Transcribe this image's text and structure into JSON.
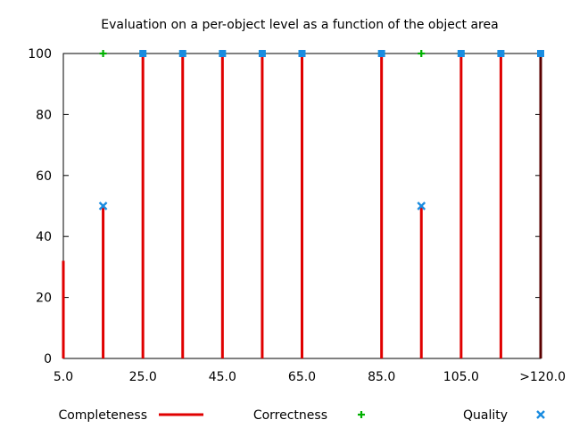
{
  "chart_data": {
    "type": "bar",
    "title": "Evaluation on a per-object level as a function of the object area",
    "xlabel": "",
    "ylabel": "",
    "xlim": [
      5.0,
      125.0
    ],
    "ylim": [
      0,
      100
    ],
    "x_ticks": [
      {
        "value": 5.0,
        "label": "5.0"
      },
      {
        "value": 25.0,
        "label": "25.0"
      },
      {
        "value": 45.0,
        "label": "45.0"
      },
      {
        "value": 65.0,
        "label": "65.0"
      },
      {
        "value": 85.0,
        "label": "85.0"
      },
      {
        "value": 105.0,
        "label": "105.0"
      },
      {
        "value": 125.0,
        "label": ">120.0"
      }
    ],
    "y_ticks": [
      {
        "value": 0,
        "label": "0"
      },
      {
        "value": 20,
        "label": "20"
      },
      {
        "value": 40,
        "label": "40"
      },
      {
        "value": 60,
        "label": "60"
      },
      {
        "value": 80,
        "label": "80"
      },
      {
        "value": 100,
        "label": "100"
      }
    ],
    "x": [
      5,
      15,
      25,
      35,
      45,
      55,
      65,
      85,
      95,
      105,
      115,
      125
    ],
    "series": [
      {
        "name": "Completeness",
        "style": "impulses",
        "color": "#e00000",
        "values": [
          32,
          50,
          100,
          100,
          100,
          100,
          100,
          100,
          50,
          100,
          100,
          100
        ]
      },
      {
        "name": "Correctness",
        "style": "plus",
        "color": "#00b000",
        "values": [
          null,
          100,
          100,
          100,
          100,
          100,
          100,
          100,
          100,
          100,
          100,
          100
        ]
      },
      {
        "name": "Quality",
        "style": "cross-box",
        "color": "#1a8ce0",
        "values": [
          null,
          50,
          100,
          100,
          100,
          100,
          100,
          100,
          50,
          100,
          100,
          100
        ]
      }
    ],
    "legend_position": "bottom",
    "grid": false
  }
}
